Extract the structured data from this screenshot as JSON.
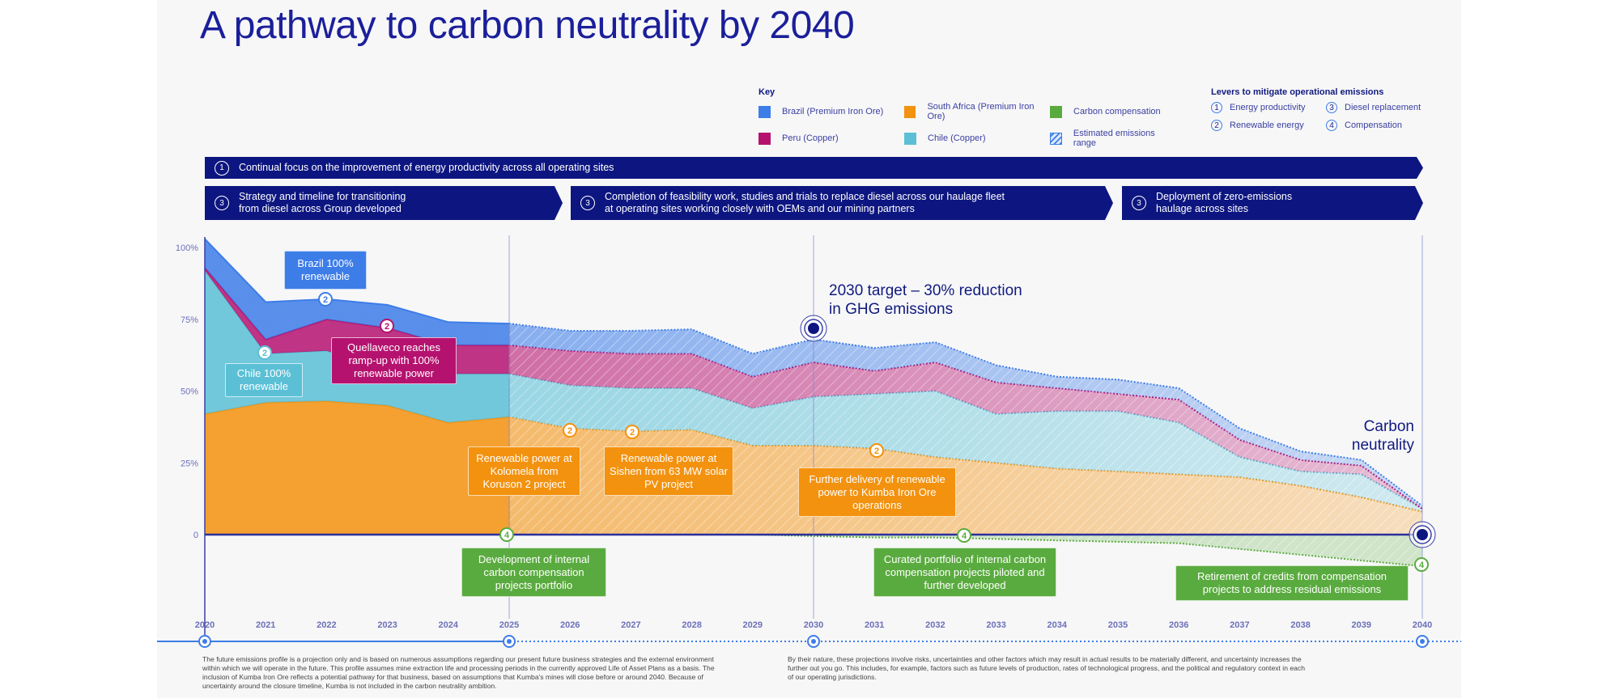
{
  "title": "A pathway to carbon neutrality by 2040",
  "key": {
    "heading": "Key",
    "items": [
      {
        "label": "Brazil (Premium Iron Ore)",
        "color": "#3d7de8"
      },
      {
        "label": "South Africa (Premium Iron Ore)",
        "color": "#f3920f"
      },
      {
        "label": "Carbon compensation",
        "color": "#5aab3f"
      },
      {
        "label": "Peru (Copper)",
        "color": "#b5126f"
      },
      {
        "label": "Chile (Copper)",
        "color": "#5bc0d6"
      },
      {
        "label": "Estimated emissions range",
        "color": "hatch"
      }
    ]
  },
  "levers": {
    "heading": "Levers to mitigate operational emissions",
    "items": [
      {
        "num": "1",
        "label": "Energy productivity"
      },
      {
        "num": "3",
        "label": "Diesel replacement"
      },
      {
        "num": "2",
        "label": "Renewable energy"
      },
      {
        "num": "4",
        "label": "Compensation"
      }
    ]
  },
  "banners": [
    {
      "num": "1",
      "text": "Continual focus on the improvement of energy productivity across all operating sites"
    },
    {
      "num": "3",
      "text": "Strategy and timeline for transitioning from diesel across Group developed"
    },
    {
      "num": "3",
      "text": "Completion of feasibility work, studies and trials to replace diesel across our haulage fleet at operating sites working closely with OEMs and our mining partners"
    },
    {
      "num": "3",
      "text": "Deployment of zero-emissions haulage across sites"
    }
  ],
  "annotations": {
    "brazil": "Brazil 100% renewable",
    "chile": "Chile 100% renewable",
    "quellaveco": "Quellaveco reaches ramp-up with 100% renewable power",
    "kolomela": "Renewable power at Kolomela from Koruson 2 project",
    "sishen": "Renewable power at Sishen from 63 MW solar PV project",
    "kumba": "Further delivery of renewable power to Kumba Iron Ore operations",
    "comp1": "Development of internal carbon compensation projects portfolio",
    "comp2": "Curated portfolio of internal carbon compensation projects piloted and further developed",
    "comp3": "Retirement of credits from compensation projects to address residual emissions",
    "target2030": "2030 target – 30% reduction in GHG emissions",
    "neutrality": "Carbon neutrality"
  },
  "footnotes": [
    "The future emissions profile is a projection only and is based on numerous assumptions regarding our present future business strategies and the external environment within which we will operate in the future. This profile assumes mine extraction life and processing periods in the currently approved Life of Asset Plans as a basis. The inclusion of Kumba Iron Ore reflects a potential pathway for that business, based on assumptions that Kumba's mines will close before or around 2040. Because of uncertainty around the closure timeline, Kumba is not included in the carbon neutrality ambition.",
    "By their nature, these projections involve risks, uncertainties and other factors which may result in actual results to be materially different, and uncertainty increases the further out you go. This includes, for example, factors such as future levels of production, rates of technological progress, and the political and regulatory context in each of our operating jurisdictions."
  ],
  "chart_data": {
    "type": "area",
    "stacked": true,
    "x": [
      2020,
      2021,
      2022,
      2023,
      2024,
      2025,
      2026,
      2027,
      2028,
      2029,
      2030,
      2031,
      2032,
      2033,
      2034,
      2035,
      2036,
      2037,
      2038,
      2039,
      2040
    ],
    "ylim": [
      -15,
      105
    ],
    "yticks": [
      "0",
      "25%",
      "50%",
      "75%",
      "100%"
    ],
    "ytick_values": [
      0,
      25,
      50,
      75,
      100
    ],
    "projection_from": 2025,
    "series": [
      {
        "name": "South Africa (Premium Iron Ore)",
        "color": "#f3920f",
        "values": [
          42,
          46,
          46.5,
          45,
          39,
          41,
          37,
          36,
          36.5,
          31,
          31,
          30,
          27,
          25,
          23,
          22,
          21,
          20,
          17,
          13,
          8
        ]
      },
      {
        "name": "Chile (Copper)",
        "color": "#5bc0d6",
        "values": [
          50,
          17,
          17.5,
          12,
          17,
          15,
          15,
          15,
          14.5,
          13,
          17,
          19,
          23,
          17,
          20,
          21,
          18,
          7,
          5,
          8,
          1
        ]
      },
      {
        "name": "Peru (Copper)",
        "color": "#b5126f",
        "values": [
          1,
          5,
          11,
          15,
          10,
          10,
          12,
          12,
          12,
          11,
          12,
          8,
          10,
          11,
          8,
          6,
          8,
          6,
          4,
          3,
          0
        ]
      },
      {
        "name": "Brazil (Premium Iron Ore)",
        "color": "#3d7de8",
        "values": [
          10,
          13,
          7,
          8,
          8,
          7.5,
          7,
          8,
          8.5,
          8,
          8,
          8,
          7,
          6,
          4,
          5,
          4,
          4,
          3,
          2,
          1
        ]
      },
      {
        "name": "Carbon compensation",
        "color": "#5aab3f",
        "values": [
          0,
          0,
          0,
          0,
          0,
          0,
          0,
          0,
          0,
          0,
          -0.5,
          -1,
          -1,
          -1.5,
          -2,
          -2.5,
          -3,
          -5,
          -7,
          -9,
          -11
        ]
      }
    ],
    "milestones": [
      {
        "year": 2030,
        "label": "2030 target – 30% reduction in GHG emissions"
      },
      {
        "year": 2040,
        "label": "Carbon neutrality"
      }
    ],
    "timeline_points": [
      2020,
      2025,
      2030,
      2040
    ]
  }
}
